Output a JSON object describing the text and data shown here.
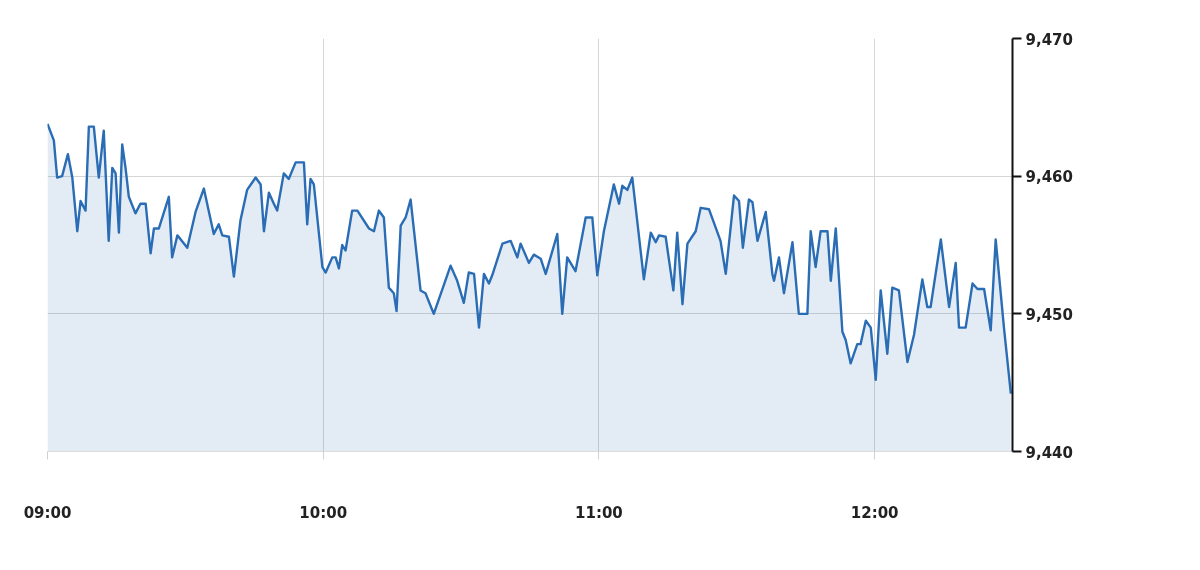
{
  "chart_data": {
    "type": "area",
    "x": [
      9.0,
      9.023,
      9.035,
      9.053,
      9.074,
      9.09,
      9.108,
      9.12,
      9.138,
      9.15,
      9.168,
      9.186,
      9.204,
      9.222,
      9.235,
      9.247,
      9.259,
      9.271,
      9.283,
      9.295,
      9.319,
      9.337,
      9.356,
      9.374,
      9.386,
      9.404,
      9.44,
      9.452,
      9.471,
      9.507,
      9.537,
      9.567,
      9.603,
      9.621,
      9.634,
      9.658,
      9.676,
      9.7,
      9.724,
      9.755,
      9.773,
      9.785,
      9.803,
      9.821,
      9.833,
      9.857,
      9.875,
      9.9,
      9.93,
      9.942,
      9.954,
      9.966,
      9.997,
      10.009,
      10.033,
      10.045,
      10.057,
      10.069,
      10.081,
      10.105,
      10.124,
      10.166,
      10.184,
      10.202,
      10.22,
      10.238,
      10.256,
      10.266,
      10.281,
      10.299,
      10.317,
      10.353,
      10.371,
      10.401,
      10.462,
      10.486,
      10.51,
      10.528,
      10.547,
      10.565,
      10.583,
      10.601,
      10.613,
      10.65,
      10.68,
      10.704,
      10.716,
      10.746,
      10.764,
      10.789,
      10.807,
      10.849,
      10.867,
      10.885,
      10.915,
      10.952,
      10.976,
      10.994,
      11.018,
      11.054,
      11.073,
      11.085,
      11.103,
      11.121,
      11.163,
      11.188,
      11.206,
      11.218,
      11.242,
      11.27,
      11.284,
      11.303,
      11.321,
      11.351,
      11.369,
      11.399,
      11.441,
      11.46,
      11.49,
      11.508,
      11.522,
      11.544,
      11.557,
      11.575,
      11.605,
      11.629,
      11.635,
      11.653,
      11.671,
      11.702,
      11.725,
      11.756,
      11.768,
      11.786,
      11.804,
      11.829,
      11.841,
      11.859,
      11.883,
      11.895,
      11.913,
      11.937,
      11.949,
      11.968,
      11.986,
      12.004,
      12.022,
      12.046,
      12.064,
      12.088,
      12.119,
      12.143,
      12.173,
      12.191,
      12.203,
      12.24,
      12.27,
      12.294,
      12.306,
      12.33,
      12.355,
      12.373,
      12.397,
      12.421,
      12.439,
      12.469,
      12.494
    ],
    "series": [
      {
        "color": "#2a6db5",
        "values": [
          9463.8,
          9462.6,
          9459.9,
          9460.0,
          9461.6,
          9459.9,
          9456.0,
          9458.2,
          9457.5,
          9463.6,
          9463.6,
          9459.9,
          9463.3,
          9455.3,
          9460.6,
          9460.2,
          9455.9,
          9462.3,
          9460.6,
          9458.5,
          9457.3,
          9458.0,
          9458.0,
          9454.4,
          9456.2,
          9456.2,
          9458.5,
          9454.1,
          9455.7,
          9454.8,
          9457.4,
          9459.1,
          9455.8,
          9456.5,
          9455.7,
          9455.6,
          9452.7,
          9456.8,
          9459.0,
          9459.9,
          9459.4,
          9456.0,
          9458.8,
          9458.0,
          9457.5,
          9460.2,
          9459.8,
          9461.0,
          9461.0,
          9456.5,
          9459.8,
          9459.4,
          9453.4,
          9453.0,
          9454.1,
          9454.1,
          9453.3,
          9455.0,
          9454.6,
          9457.5,
          9457.5,
          9456.2,
          9456.0,
          9457.5,
          9457.0,
          9451.9,
          9451.5,
          9450.2,
          9456.4,
          9457.0,
          9458.3,
          9451.7,
          9451.5,
          9450.0,
          9453.5,
          9452.4,
          9450.8,
          9453.0,
          9452.9,
          9449.0,
          9452.9,
          9452.2,
          9452.8,
          9455.1,
          9455.3,
          9454.1,
          9455.1,
          9453.7,
          9454.3,
          9454.0,
          9452.9,
          9455.8,
          9450.0,
          9454.1,
          9453.1,
          9457.0,
          9457.0,
          9452.8,
          9456.0,
          9459.4,
          9458.0,
          9459.3,
          9459.0,
          9459.9,
          9452.5,
          9455.9,
          9455.2,
          9455.7,
          9455.6,
          9451.7,
          9455.9,
          9450.7,
          9455.1,
          9456.0,
          9457.7,
          9457.6,
          9455.3,
          9452.9,
          9458.6,
          9458.2,
          9454.8,
          9458.3,
          9458.1,
          9455.3,
          9457.4,
          9452.9,
          9452.4,
          9454.1,
          9451.5,
          9455.2,
          9450.0,
          9450.0,
          9456.0,
          9453.4,
          9456.0,
          9456.0,
          9452.4,
          9456.2,
          9448.7,
          9448.1,
          9446.4,
          9447.8,
          9447.8,
          9449.5,
          9449.0,
          9445.2,
          9451.7,
          9447.1,
          9451.9,
          9451.7,
          9446.5,
          9448.5,
          9452.5,
          9450.5,
          9450.5,
          9455.4,
          9450.5,
          9453.7,
          9449.0,
          9449.0,
          9452.2,
          9451.8,
          9451.8,
          9448.8,
          9455.4,
          9449.0,
          9444.2
        ]
      }
    ],
    "xlim": [
      9,
      12.5
    ],
    "xticks": [
      {
        "value": 9,
        "label": "09:00"
      },
      {
        "value": 10,
        "label": "10:00"
      },
      {
        "value": 11,
        "label": "11:00"
      },
      {
        "value": 12,
        "label": "12:00"
      }
    ],
    "ylim": [
      9440,
      9470
    ],
    "yticks": [
      {
        "value": 9440,
        "label": "9,440"
      },
      {
        "value": 9450,
        "label": "9,450"
      },
      {
        "value": 9460,
        "label": "9,460"
      },
      {
        "value": 9470,
        "label": "9,470"
      }
    ],
    "grid": true
  }
}
